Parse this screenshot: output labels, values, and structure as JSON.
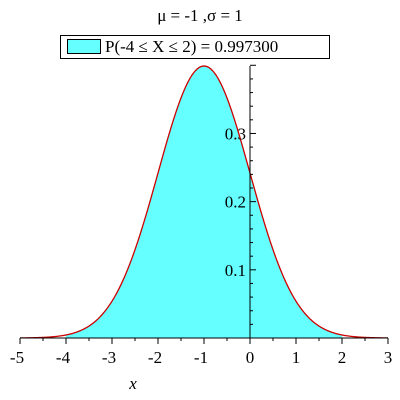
{
  "chart_data": {
    "type": "area",
    "title": "μ = -1 ,σ = 1",
    "legend": [
      {
        "label": "P(-4 ≤ X ≤ 2) = 0.997300",
        "color": "#66ffff",
        "placement": "top"
      }
    ],
    "xlabel": "x",
    "ylabel": "",
    "xlim": [
      -5,
      3
    ],
    "ylim": [
      0,
      0.4
    ],
    "x_ticks": [
      "-5",
      "-4",
      "-3",
      "-2",
      "-1",
      "0",
      "1",
      "2",
      "3"
    ],
    "y_ticks": [
      "0.1",
      "0.2",
      "0.3"
    ],
    "grid": false,
    "series": [
      {
        "curve": "normal pdf",
        "mean": -1,
        "sd": 1,
        "color": "#cc0000"
      }
    ],
    "shaded_region": {
      "from": -4,
      "to": 2,
      "color": "#66ffff",
      "probability": 0.9973
    }
  }
}
